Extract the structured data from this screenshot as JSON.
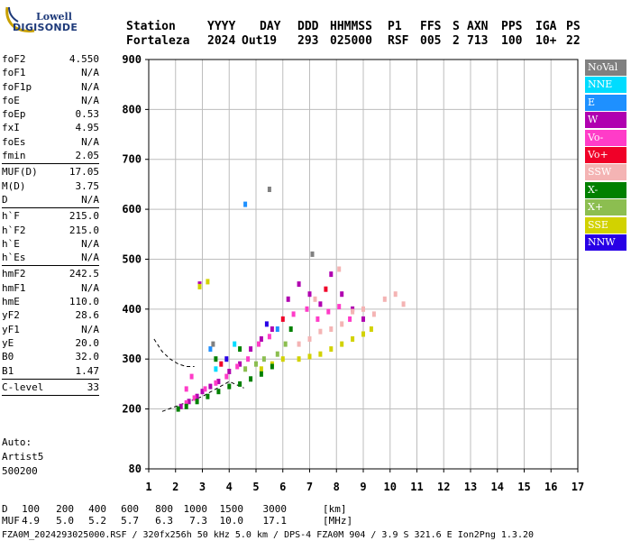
{
  "logo": {
    "line1": "Lowell",
    "line2": "DIGISONDE"
  },
  "header": {
    "labels": [
      "Station",
      "YYYY",
      "DAY",
      "DDD",
      "HHMMSS",
      "P1",
      "FFS",
      "S",
      "AXN",
      "PPS",
      "IGA",
      "PS"
    ],
    "values": [
      "Fortaleza",
      "2024",
      "Out19",
      "293",
      "025000",
      "RSF",
      "005",
      "2",
      "713",
      "100",
      "10+",
      "22"
    ]
  },
  "params": {
    "group1": [
      {
        "name": "foF2",
        "value": "4.550"
      },
      {
        "name": "foF1",
        "value": "N/A"
      },
      {
        "name": "foF1p",
        "value": "N/A"
      },
      {
        "name": "foE",
        "value": "N/A"
      },
      {
        "name": "foEp",
        "value": "0.53"
      },
      {
        "name": "fxI",
        "value": "4.95"
      },
      {
        "name": "foEs",
        "value": "N/A"
      },
      {
        "name": "fmin",
        "value": "2.05"
      }
    ],
    "group2": [
      {
        "name": "MUF(D)",
        "value": "17.05"
      },
      {
        "name": "M(D)",
        "value": "3.75"
      },
      {
        "name": "D",
        "value": "N/A"
      }
    ],
    "group3": [
      {
        "name": "h`F",
        "value": "215.0"
      },
      {
        "name": "h`F2",
        "value": "215.0"
      },
      {
        "name": "h`E",
        "value": "N/A"
      },
      {
        "name": "h`Es",
        "value": "N/A"
      }
    ],
    "group4": [
      {
        "name": "hmF2",
        "value": "242.5"
      },
      {
        "name": "hmF1",
        "value": "N/A"
      },
      {
        "name": "hmE",
        "value": "110.0"
      },
      {
        "name": "yF2",
        "value": "28.6"
      },
      {
        "name": "yF1",
        "value": "N/A"
      },
      {
        "name": "yE",
        "value": "20.0"
      },
      {
        "name": "B0",
        "value": "32.0"
      },
      {
        "name": "B1",
        "value": "1.47"
      }
    ],
    "group5": [
      {
        "name": "C-level",
        "value": "33"
      }
    ]
  },
  "auto": {
    "line1": "Auto:",
    "line2": "Artist5",
    "line3": "500200"
  },
  "legend": [
    {
      "label": "NoVal",
      "color": "#808080"
    },
    {
      "label": "NNE",
      "color": "#00dcff"
    },
    {
      "label": "E",
      "color": "#1e90ff"
    },
    {
      "label": "W",
      "color": "#b000b0"
    },
    {
      "label": "Vo-",
      "color": "#ff3cc8"
    },
    {
      "label": "Vo+",
      "color": "#f00028"
    },
    {
      "label": "SSW",
      "color": "#f4b4b4"
    },
    {
      "label": "X-",
      "color": "#008000"
    },
    {
      "label": "X+",
      "color": "#8cbe50"
    },
    {
      "label": "SSE",
      "color": "#d2d200"
    },
    {
      "label": "NNW",
      "color": "#2800e6"
    }
  ],
  "chart_data": {
    "type": "scatter",
    "title": "",
    "xlabel": "",
    "ylabel": "",
    "xlim": [
      1,
      17
    ],
    "ylim": [
      80,
      900
    ],
    "xticks": [
      1,
      2,
      3,
      4,
      5,
      6,
      7,
      8,
      9,
      10,
      11,
      12,
      13,
      14,
      15,
      16,
      17
    ],
    "yticks": [
      80,
      200,
      300,
      400,
      500,
      600,
      700,
      800,
      900
    ],
    "grid": true,
    "legend_position": "right",
    "series": [
      {
        "name": "W",
        "points": [
          [
            2.2,
            205
          ],
          [
            2.5,
            215
          ],
          [
            2.8,
            225
          ],
          [
            3.0,
            235
          ],
          [
            3.3,
            245
          ],
          [
            3.6,
            255
          ],
          [
            4.0,
            275
          ],
          [
            4.4,
            290
          ],
          [
            4.8,
            320
          ],
          [
            5.2,
            340
          ],
          [
            5.6,
            360
          ],
          [
            6.2,
            420
          ],
          [
            6.6,
            450
          ],
          [
            7.0,
            430
          ],
          [
            7.4,
            410
          ],
          [
            7.8,
            470
          ],
          [
            8.2,
            430
          ],
          [
            8.6,
            400
          ],
          [
            9.0,
            380
          ],
          [
            2.9,
            450
          ]
        ]
      },
      {
        "name": "Vo-",
        "points": [
          [
            2.4,
            212
          ],
          [
            2.7,
            222
          ],
          [
            3.1,
            240
          ],
          [
            3.5,
            252
          ],
          [
            3.9,
            265
          ],
          [
            4.3,
            285
          ],
          [
            4.7,
            300
          ],
          [
            5.1,
            330
          ],
          [
            5.5,
            345
          ],
          [
            6.4,
            390
          ],
          [
            6.9,
            400
          ],
          [
            7.3,
            380
          ],
          [
            7.7,
            395
          ],
          [
            8.1,
            405
          ],
          [
            8.5,
            380
          ],
          [
            2.4,
            240
          ],
          [
            2.6,
            265
          ]
        ]
      },
      {
        "name": "SSW",
        "points": [
          [
            6.6,
            330
          ],
          [
            7.0,
            340
          ],
          [
            7.4,
            355
          ],
          [
            7.8,
            360
          ],
          [
            8.2,
            370
          ],
          [
            8.6,
            395
          ],
          [
            9.0,
            400
          ],
          [
            9.4,
            390
          ],
          [
            9.8,
            420
          ],
          [
            10.2,
            430
          ],
          [
            10.5,
            410
          ],
          [
            8.1,
            480
          ],
          [
            7.2,
            420
          ]
        ]
      },
      {
        "name": "SSE",
        "points": [
          [
            5.2,
            280
          ],
          [
            5.6,
            290
          ],
          [
            6.0,
            300
          ],
          [
            6.6,
            300
          ],
          [
            7.0,
            305
          ],
          [
            7.4,
            310
          ],
          [
            7.8,
            320
          ],
          [
            8.2,
            330
          ],
          [
            8.6,
            340
          ],
          [
            9.0,
            350
          ],
          [
            9.3,
            360
          ],
          [
            2.9,
            445
          ],
          [
            3.2,
            455
          ]
        ]
      },
      {
        "name": "X-",
        "points": [
          [
            2.1,
            200
          ],
          [
            2.4,
            205
          ],
          [
            2.8,
            215
          ],
          [
            3.2,
            225
          ],
          [
            3.6,
            235
          ],
          [
            4.0,
            245
          ],
          [
            4.4,
            250
          ],
          [
            4.8,
            260
          ],
          [
            5.2,
            270
          ],
          [
            5.6,
            285
          ],
          [
            3.5,
            300
          ],
          [
            4.4,
            320
          ],
          [
            6.3,
            360
          ]
        ]
      },
      {
        "name": "X+",
        "points": [
          [
            4.6,
            280
          ],
          [
            5.0,
            290
          ],
          [
            5.3,
            300
          ],
          [
            5.8,
            310
          ],
          [
            6.1,
            330
          ]
        ]
      },
      {
        "name": "E",
        "points": [
          [
            4.6,
            610
          ],
          [
            3.3,
            320
          ],
          [
            5.8,
            360
          ]
        ]
      },
      {
        "name": "NNE",
        "points": [
          [
            3.5,
            280
          ],
          [
            4.2,
            330
          ]
        ]
      },
      {
        "name": "NNW",
        "points": [
          [
            3.9,
            300
          ],
          [
            5.4,
            370
          ]
        ]
      },
      {
        "name": "Vo+",
        "points": [
          [
            3.7,
            290
          ],
          [
            6.0,
            380
          ],
          [
            7.6,
            440
          ]
        ]
      },
      {
        "name": "NoVal",
        "points": [
          [
            3.4,
            330
          ],
          [
            5.5,
            640
          ],
          [
            7.1,
            510
          ]
        ]
      }
    ],
    "profile_curve": [
      [
        1.2,
        340
      ],
      [
        1.5,
        315
      ],
      [
        1.8,
        300
      ],
      [
        2.1,
        290
      ],
      [
        2.4,
        285
      ],
      [
        2.7,
        285
      ]
    ],
    "trace_curve": [
      [
        1.5,
        195
      ],
      [
        2.0,
        205
      ],
      [
        2.5,
        215
      ],
      [
        3.0,
        225
      ],
      [
        3.5,
        240
      ],
      [
        4.0,
        255
      ],
      [
        4.55,
        242
      ]
    ]
  },
  "bottom": {
    "d_label": "D",
    "d_values": [
      "100",
      "200",
      "400",
      "600",
      "800",
      "1000",
      "1500",
      "3000",
      "[km]"
    ],
    "muf_label": "MUF",
    "muf_values": [
      "4.9",
      "5.0",
      "5.2",
      "5.7",
      "6.3",
      "7.3",
      "10.0",
      "17.1",
      "[MHz]"
    ],
    "footer": "FZA0M_2024293025000.RSF / 320fx256h 50 kHz 5.0 km / DPS-4 FZA0M 904 / 3.9 S 321.6 E   Ion2Png 1.3.20"
  }
}
